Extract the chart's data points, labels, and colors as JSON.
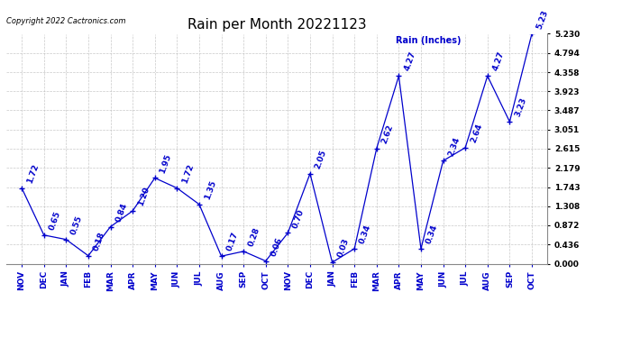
{
  "title": "Rain per Month 20221123",
  "copyright_text": "Copyright 2022 Cactronics.com",
  "legend_label": "Rain (Inches)",
  "months": [
    "NOV",
    "DEC",
    "JAN",
    "FEB",
    "MAR",
    "APR",
    "MAY",
    "JUN",
    "JUL",
    "AUG",
    "SEP",
    "OCT",
    "NOV",
    "DEC",
    "JAN",
    "FEB",
    "MAR",
    "APR",
    "MAY",
    "JUN",
    "JUL",
    "AUG",
    "SEP",
    "OCT"
  ],
  "values": [
    1.72,
    0.65,
    0.55,
    0.18,
    0.84,
    1.2,
    1.95,
    1.72,
    1.35,
    0.17,
    0.28,
    0.06,
    0.7,
    2.05,
    0.03,
    0.34,
    2.62,
    4.27,
    0.34,
    2.34,
    2.64,
    4.27,
    3.23,
    5.23
  ],
  "line_color": "#0000cc",
  "marker": "+",
  "grid_color": "#bbbbbb",
  "bg_color": "#ffffff",
  "ylim": [
    0.0,
    5.23
  ],
  "yticks": [
    0.0,
    0.436,
    0.872,
    1.308,
    1.743,
    2.179,
    2.615,
    3.051,
    3.487,
    3.923,
    4.358,
    4.794,
    5.23
  ],
  "title_fontsize": 11,
  "annot_fontsize": 6.5,
  "tick_fontsize": 6.5,
  "copyright_fontsize": 6,
  "legend_fontsize": 7
}
